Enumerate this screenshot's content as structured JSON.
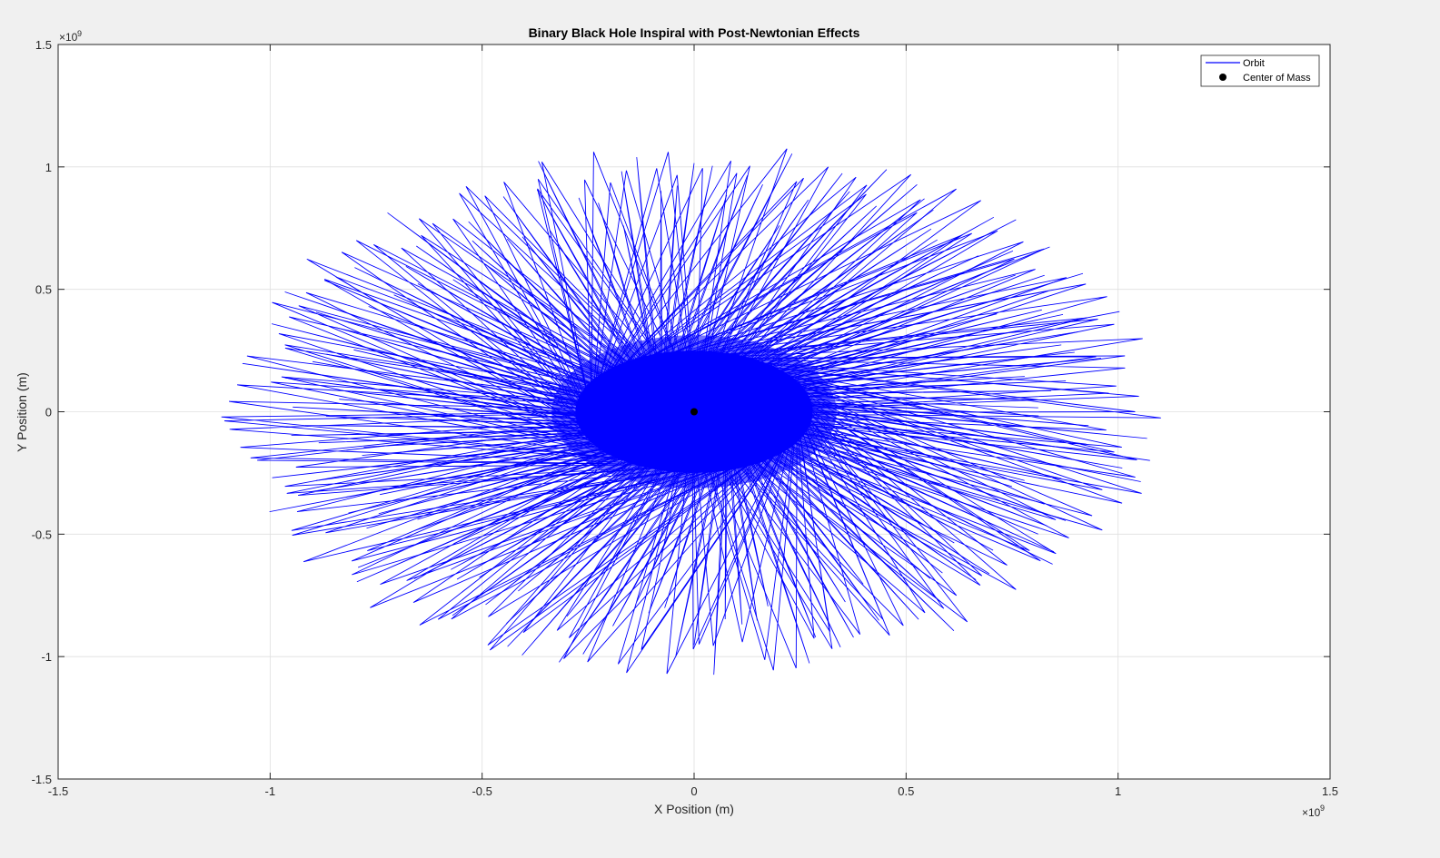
{
  "chart_data": {
    "type": "line",
    "title": "Binary Black Hole Inspiral with Post-Newtonian Effects",
    "xlabel": "X Position (m)",
    "ylabel": "Y Position (m)",
    "xlim": [
      -1500000000.0,
      1500000000.0
    ],
    "ylim": [
      -1500000000.0,
      1500000000.0
    ],
    "x_ticks": [
      -1.5,
      -1,
      -0.5,
      0,
      0.5,
      1,
      1.5
    ],
    "x_tick_labels": [
      "-1.5",
      "-1",
      "-0.5",
      "0",
      "0.5",
      "1",
      "1.5"
    ],
    "y_ticks": [
      -1.5,
      -1,
      -0.5,
      0,
      0.5,
      1,
      1.5
    ],
    "y_tick_labels": [
      "-1.5",
      "-1",
      "-0.5",
      "0",
      "0.5",
      "1",
      "1.5"
    ],
    "x_exponent": {
      "base": "×10",
      "power": "9"
    },
    "y_exponent": {
      "base": "×10",
      "power": "9"
    },
    "grid": true,
    "legend_position": "top-right",
    "series": [
      {
        "name": "Orbit",
        "color": "#0000ff",
        "style": "line",
        "description_params": {
          "outer_radius_x": 1120000000.0,
          "outer_radius_y": 1120000000.0,
          "inner_core_radius_x": 280000000.0,
          "inner_core_radius_y": 250000000.0,
          "spikes": 150
        }
      },
      {
        "name": "Center of Mass",
        "color": "#000000",
        "style": "marker",
        "x": [
          0
        ],
        "y": [
          0
        ]
      }
    ]
  }
}
